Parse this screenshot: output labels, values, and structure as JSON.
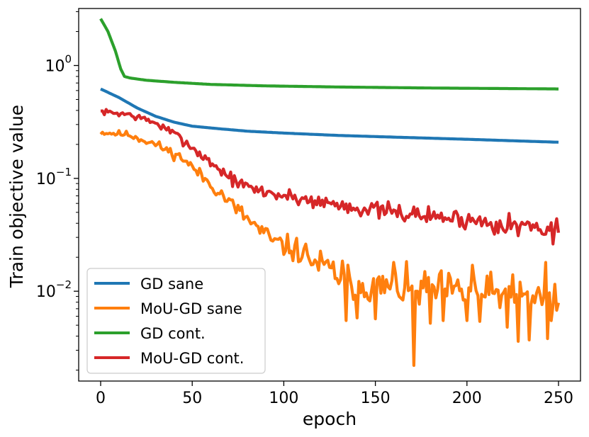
{
  "chart_data": {
    "type": "line",
    "title": "",
    "xlabel": "epoch",
    "ylabel": "Train objective value",
    "yscale": "log",
    "xlim": [
      -12,
      262
    ],
    "ylim": [
      0.0016,
      3.2
    ],
    "xticks": [
      {
        "value": 0,
        "label": "0"
      },
      {
        "value": 50,
        "label": "50"
      },
      {
        "value": 100,
        "label": "100"
      },
      {
        "value": 150,
        "label": "150"
      },
      {
        "value": 200,
        "label": "200"
      },
      {
        "value": 250,
        "label": "250"
      }
    ],
    "yticks": [
      {
        "value": 1,
        "base": "10",
        "exp": "0"
      },
      {
        "value": 0.1,
        "base": "10",
        "exp": "−1"
      },
      {
        "value": 0.01,
        "base": "10",
        "exp": "−2"
      }
    ],
    "grid": false,
    "legend_position": "lower-left",
    "series": [
      {
        "name": "GD sane",
        "color": "#1f77b4",
        "smooth": true,
        "keypoints": [
          [
            0,
            0.62
          ],
          [
            10,
            0.52
          ],
          [
            20,
            0.42
          ],
          [
            30,
            0.355
          ],
          [
            40,
            0.315
          ],
          [
            50,
            0.29
          ],
          [
            65,
            0.275
          ],
          [
            80,
            0.262
          ],
          [
            100,
            0.252
          ],
          [
            130,
            0.24
          ],
          [
            160,
            0.232
          ],
          [
            200,
            0.222
          ],
          [
            250,
            0.209
          ]
        ]
      },
      {
        "name": "MoU-GD sane",
        "color": "#ff7f0e",
        "smooth": false,
        "keypoints": [
          [
            0,
            0.255
          ],
          [
            15,
            0.245
          ],
          [
            30,
            0.2
          ],
          [
            45,
            0.15
          ],
          [
            55,
            0.105
          ],
          [
            65,
            0.075
          ],
          [
            75,
            0.052
          ],
          [
            85,
            0.037
          ],
          [
            95,
            0.027
          ],
          [
            110,
            0.022
          ],
          [
            120,
            0.017
          ],
          [
            135,
            0.0125
          ],
          [
            150,
            0.011
          ],
          [
            250,
            0.0085
          ]
        ],
        "noise_seed": 11,
        "noise_amp": [
          [
            0,
            0.05
          ],
          [
            60,
            0.12
          ],
          [
            100,
            0.22
          ],
          [
            140,
            0.35
          ],
          [
            250,
            0.4
          ]
        ],
        "spikes": [
          [
            134,
            0.0055
          ],
          [
            140,
            0.0058
          ],
          [
            150,
            0.0057
          ],
          [
            160,
            0.0054
          ],
          [
            171,
            0.0022
          ],
          [
            180,
            0.0052
          ],
          [
            187,
            0.0055
          ],
          [
            200,
            0.0055
          ],
          [
            207,
            0.0054
          ],
          [
            222,
            0.0048
          ],
          [
            228,
            0.0036
          ],
          [
            234,
            0.0037
          ],
          [
            244,
            0.0038
          ],
          [
            246,
            0.0055
          ],
          [
            118,
            0.018
          ],
          [
            160,
            0.018
          ],
          [
            203,
            0.017
          ],
          [
            243,
            0.018
          ],
          [
            132,
            0.0185
          ]
        ],
        "end_value": 0.0079
      },
      {
        "name": "GD cont.",
        "color": "#2ca02c",
        "smooth": true,
        "keypoints": [
          [
            0,
            2.6
          ],
          [
            4,
            2.0
          ],
          [
            8,
            1.35
          ],
          [
            11,
            0.93
          ],
          [
            13,
            0.8
          ],
          [
            16,
            0.775
          ],
          [
            25,
            0.74
          ],
          [
            40,
            0.71
          ],
          [
            60,
            0.68
          ],
          [
            90,
            0.66
          ],
          [
            130,
            0.645
          ],
          [
            180,
            0.632
          ],
          [
            250,
            0.62
          ]
        ]
      },
      {
        "name": "MoU-GD cont.",
        "color": "#d62728",
        "smooth": false,
        "keypoints": [
          [
            0,
            0.39
          ],
          [
            15,
            0.37
          ],
          [
            30,
            0.31
          ],
          [
            45,
            0.22
          ],
          [
            55,
            0.16
          ],
          [
            65,
            0.12
          ],
          [
            75,
            0.09
          ],
          [
            85,
            0.079
          ],
          [
            100,
            0.07
          ],
          [
            120,
            0.062
          ],
          [
            140,
            0.055
          ],
          [
            160,
            0.05
          ],
          [
            200,
            0.043
          ],
          [
            250,
            0.036
          ]
        ],
        "noise_seed": 7,
        "noise_amp": [
          [
            0,
            0.05
          ],
          [
            50,
            0.1
          ],
          [
            100,
            0.14
          ],
          [
            200,
            0.18
          ],
          [
            250,
            0.2
          ]
        ],
        "spikes": [
          [
            247,
            0.0262
          ],
          [
            243,
            0.032
          ],
          [
            228,
            0.031
          ],
          [
            215,
            0.032
          ]
        ],
        "end_value": 0.033
      }
    ]
  }
}
